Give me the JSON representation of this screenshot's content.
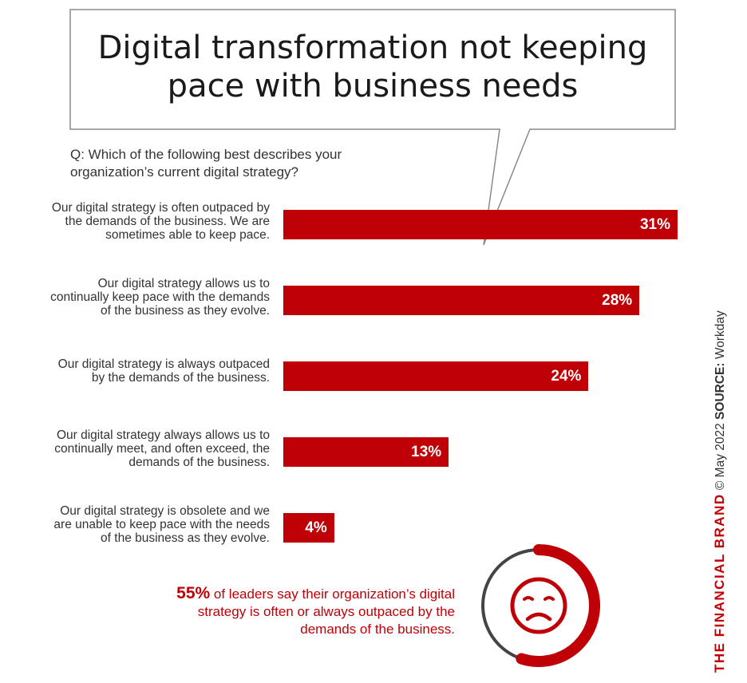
{
  "title": "Digital transformation not keeping pace with business needs",
  "question": "Q: Which of the following best describes your organization’s current digital strategy?",
  "colors": {
    "bar": "#c00007",
    "donut_track": "#444444"
  },
  "chart_data": {
    "type": "bar",
    "orientation": "horizontal",
    "categories": [
      "Our digital strategy is often outpaced by the demands of the business. We are sometimes able to keep pace.",
      "Our digital strategy allows us to continually keep pace with the demands of the business as they evolve.",
      "Our digital strategy is always outpaced by the demands of the business.",
      "Our digital strategy always allows us to continually meet, and often exceed, the demands of the business.",
      "Our digital strategy is obsolete and we are unable to keep pace with the needs of the business as they evolve."
    ],
    "values": [
      31,
      28,
      24,
      13,
      4
    ],
    "value_labels": [
      "31%",
      "28%",
      "24%",
      "13%",
      "4%"
    ],
    "unit": "%",
    "xlim": [
      0,
      31
    ]
  },
  "callout": {
    "percent": "55%",
    "percent_value": 55,
    "text": "of leaders say their organization’s digital strategy is often or always outpaced by the demands of the business.",
    "icon": "sad-face-icon"
  },
  "credit": {
    "brand": "THE FINANCIAL BRAND",
    "date": "© May 2022",
    "source_label": "SOURCE:",
    "source": "Workday"
  }
}
